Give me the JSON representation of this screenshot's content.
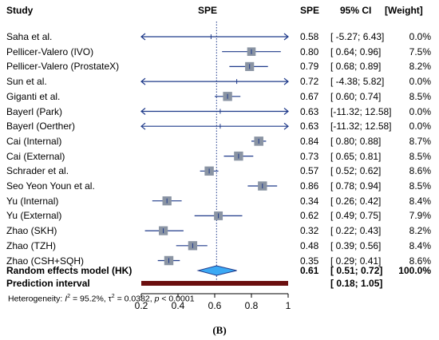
{
  "header": {
    "study": "Study",
    "plot_label": "SPE",
    "estimate": "SPE",
    "ci": "95% CI",
    "weight": "[Weight]"
  },
  "chart_data": {
    "type": "forest",
    "xaxis": {
      "ticks": [
        "0.2",
        "0.4",
        "0.6",
        "0.8",
        "1"
      ],
      "xlim": [
        0.2,
        1.0
      ]
    },
    "reference_line": 0.61,
    "colors": {
      "box": "#8a94a3",
      "line": "#1f3a8a",
      "diamond": "#3ba9f4",
      "prediction": "#6b0f0f",
      "ref_line": "#1f3a8a"
    },
    "studies": [
      {
        "name": "Saha et al.",
        "est": 0.58,
        "lo": -5.27,
        "hi": 6.43,
        "spe": "0.58",
        "ci": "[ -5.27;  6.43]",
        "weight": "0.0%",
        "wt": 0.0
      },
      {
        "name": "Pellicer-Valero (IVO)",
        "est": 0.8,
        "lo": 0.64,
        "hi": 0.96,
        "spe": "0.80",
        "ci": "[  0.64;  0.96]",
        "weight": "7.5%",
        "wt": 7.5
      },
      {
        "name": "Pellicer-Valero (ProstateX)",
        "est": 0.79,
        "lo": 0.68,
        "hi": 0.89,
        "spe": "0.79",
        "ci": "[  0.68;  0.89]",
        "weight": "8.2%",
        "wt": 8.2
      },
      {
        "name": "Sun et al.",
        "est": 0.72,
        "lo": -4.38,
        "hi": 5.82,
        "spe": "0.72",
        "ci": "[ -4.38;  5.82]",
        "weight": "0.0%",
        "wt": 0.0
      },
      {
        "name": "Giganti et al.",
        "est": 0.67,
        "lo": 0.6,
        "hi": 0.74,
        "spe": "0.67",
        "ci": "[  0.60;  0.74]",
        "weight": "8.5%",
        "wt": 8.5
      },
      {
        "name": "Bayerl (Park)",
        "est": 0.63,
        "lo": -11.32,
        "hi": 12.58,
        "spe": "0.63",
        "ci": "[-11.32; 12.58]",
        "weight": "0.0%",
        "wt": 0.0
      },
      {
        "name": "Bayerl (Oerther)",
        "est": 0.63,
        "lo": -11.32,
        "hi": 12.58,
        "spe": "0.63",
        "ci": "[-11.32; 12.58]",
        "weight": "0.0%",
        "wt": 0.0
      },
      {
        "name": "Cai (Internal)",
        "est": 0.84,
        "lo": 0.8,
        "hi": 0.88,
        "spe": "0.84",
        "ci": "[  0.80;  0.88]",
        "weight": "8.7%",
        "wt": 8.7
      },
      {
        "name": "Cai (External)",
        "est": 0.73,
        "lo": 0.65,
        "hi": 0.81,
        "spe": "0.73",
        "ci": "[  0.65;  0.81]",
        "weight": "8.5%",
        "wt": 8.5
      },
      {
        "name": "Schrader et al.",
        "est": 0.57,
        "lo": 0.52,
        "hi": 0.62,
        "spe": "0.57",
        "ci": "[  0.52;  0.62]",
        "weight": "8.6%",
        "wt": 8.6
      },
      {
        "name": "Seo Yeon Youn et al.",
        "est": 0.86,
        "lo": 0.78,
        "hi": 0.94,
        "spe": "0.86",
        "ci": "[  0.78;  0.94]",
        "weight": "8.5%",
        "wt": 8.5
      },
      {
        "name": "Yu (Internal)",
        "est": 0.34,
        "lo": 0.26,
        "hi": 0.42,
        "spe": "0.34",
        "ci": "[  0.26;  0.42]",
        "weight": "8.4%",
        "wt": 8.4
      },
      {
        "name": "Yu (External)",
        "est": 0.62,
        "lo": 0.49,
        "hi": 0.75,
        "spe": "0.62",
        "ci": "[  0.49;  0.75]",
        "weight": "7.9%",
        "wt": 7.9
      },
      {
        "name": "Zhao (SKH)",
        "est": 0.32,
        "lo": 0.22,
        "hi": 0.43,
        "spe": "0.32",
        "ci": "[  0.22;  0.43]",
        "weight": "8.2%",
        "wt": 8.2
      },
      {
        "name": "Zhao (TZH)",
        "est": 0.48,
        "lo": 0.39,
        "hi": 0.56,
        "spe": "0.48",
        "ci": "[  0.39;  0.56]",
        "weight": "8.4%",
        "wt": 8.4
      },
      {
        "name": "Zhao (CSH+SQH)",
        "est": 0.35,
        "lo": 0.29,
        "hi": 0.41,
        "spe": "0.35",
        "ci": "[  0.29;  0.41]",
        "weight": "8.6%",
        "wt": 8.6
      }
    ],
    "random_effects": {
      "label": "Random effects model (HK)",
      "est": 0.61,
      "lo": 0.51,
      "hi": 0.72,
      "spe": "0.61",
      "ci": "[  0.51;  0.72]",
      "weight": "100.0%"
    },
    "prediction": {
      "label": "Prediction interval",
      "lo": 0.18,
      "hi": 1.05,
      "ci": "[  0.18;  1.05]"
    },
    "heterogeneity": {
      "prefix": "Heterogeneity: ",
      "i2_label": "I",
      "i2_value": " = 95.2%, τ",
      "tau2_value": " = 0.0382, ",
      "p_label": "p",
      "p_value": " < 0.0001"
    },
    "panel_label": "(B)"
  }
}
